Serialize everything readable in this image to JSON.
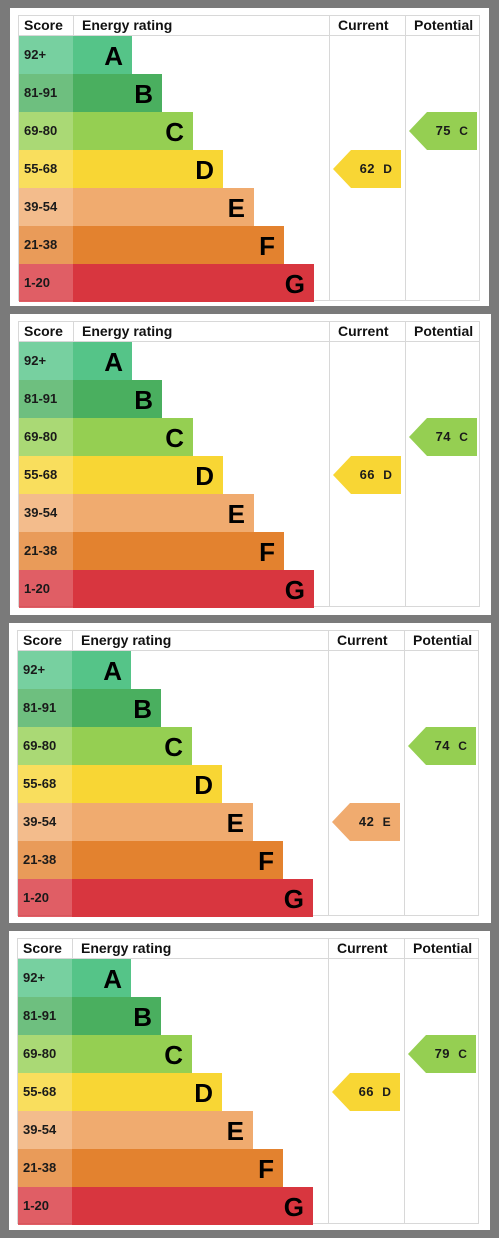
{
  "chart_data": [
    {
      "type": "table",
      "headers": {
        "score": "Score",
        "energy_rating": "Energy rating",
        "current": "Current",
        "potential": "Potential"
      },
      "bands": [
        {
          "score": "92+",
          "letter": "A",
          "color": "#55c488"
        },
        {
          "score": "81-91",
          "letter": "B",
          "color": "#4aaf5f"
        },
        {
          "score": "69-80",
          "letter": "C",
          "color": "#95cf52"
        },
        {
          "score": "55-68",
          "letter": "D",
          "color": "#f8d634"
        },
        {
          "score": "39-54",
          "letter": "E",
          "color": "#f0ab6f"
        },
        {
          "score": "21-38",
          "letter": "F",
          "color": "#e3822f"
        },
        {
          "score": "1-20",
          "letter": "G",
          "color": "#d8363f"
        }
      ],
      "current": {
        "value": 62,
        "band": "D"
      },
      "potential": {
        "value": 75,
        "band": "C"
      }
    },
    {
      "type": "table",
      "headers": {
        "score": "Score",
        "energy_rating": "Energy rating",
        "current": "Current",
        "potential": "Potential"
      },
      "bands": [
        {
          "score": "92+",
          "letter": "A",
          "color": "#55c488"
        },
        {
          "score": "81-91",
          "letter": "B",
          "color": "#4aaf5f"
        },
        {
          "score": "69-80",
          "letter": "C",
          "color": "#95cf52"
        },
        {
          "score": "55-68",
          "letter": "D",
          "color": "#f8d634"
        },
        {
          "score": "39-54",
          "letter": "E",
          "color": "#f0ab6f"
        },
        {
          "score": "21-38",
          "letter": "F",
          "color": "#e3822f"
        },
        {
          "score": "1-20",
          "letter": "G",
          "color": "#d8363f"
        }
      ],
      "current": {
        "value": 66,
        "band": "D"
      },
      "potential": {
        "value": 74,
        "band": "C"
      }
    },
    {
      "type": "table",
      "headers": {
        "score": "Score",
        "energy_rating": "Energy rating",
        "current": "Current",
        "potential": "Potential"
      },
      "bands": [
        {
          "score": "92+",
          "letter": "A",
          "color": "#55c488"
        },
        {
          "score": "81-91",
          "letter": "B",
          "color": "#4aaf5f"
        },
        {
          "score": "69-80",
          "letter": "C",
          "color": "#95cf52"
        },
        {
          "score": "55-68",
          "letter": "D",
          "color": "#f8d634"
        },
        {
          "score": "39-54",
          "letter": "E",
          "color": "#f0ab6f"
        },
        {
          "score": "21-38",
          "letter": "F",
          "color": "#e3822f"
        },
        {
          "score": "1-20",
          "letter": "G",
          "color": "#d8363f"
        }
      ],
      "current": {
        "value": 42,
        "band": "E"
      },
      "potential": {
        "value": 74,
        "band": "C"
      }
    },
    {
      "type": "table",
      "headers": {
        "score": "Score",
        "energy_rating": "Energy rating",
        "current": "Current",
        "potential": "Potential"
      },
      "bands": [
        {
          "score": "92+",
          "letter": "A",
          "color": "#55c488"
        },
        {
          "score": "81-91",
          "letter": "B",
          "color": "#4aaf5f"
        },
        {
          "score": "69-80",
          "letter": "C",
          "color": "#95cf52"
        },
        {
          "score": "55-68",
          "letter": "D",
          "color": "#f8d634"
        },
        {
          "score": "39-54",
          "letter": "E",
          "color": "#f0ab6f"
        },
        {
          "score": "21-38",
          "letter": "F",
          "color": "#e3822f"
        },
        {
          "score": "1-20",
          "letter": "G",
          "color": "#d8363f"
        }
      ],
      "current": {
        "value": 66,
        "band": "D"
      },
      "potential": {
        "value": 79,
        "band": "C"
      }
    }
  ]
}
